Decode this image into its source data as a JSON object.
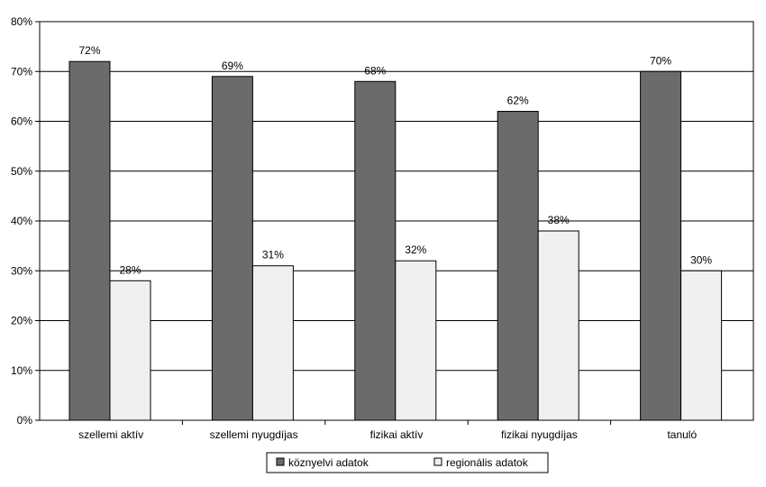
{
  "chart_data": {
    "type": "bar",
    "categories": [
      "szellemi aktív",
      "szellemi nyugdíjas",
      "fizikai aktív",
      "fizikai nyugdíjas",
      "tanuló"
    ],
    "series": [
      {
        "name": "köznyelvi adatok",
        "values": [
          72,
          69,
          68,
          62,
          70
        ],
        "color": "#6b6b6b"
      },
      {
        "name": "regionális adatok",
        "values": [
          28,
          31,
          32,
          38,
          30
        ],
        "color": "#f0f0f0"
      }
    ],
    "data_labels": [
      [
        "72%",
        "69%",
        "68%",
        "62%",
        "70%"
      ],
      [
        "28%",
        "31%",
        "32%",
        "38%",
        "30%"
      ]
    ],
    "y_ticks": [
      "0%",
      "10%",
      "20%",
      "30%",
      "40%",
      "50%",
      "60%",
      "70%",
      "80%"
    ],
    "ylim": [
      0,
      80
    ],
    "grid": true,
    "legend_position": "bottom"
  }
}
